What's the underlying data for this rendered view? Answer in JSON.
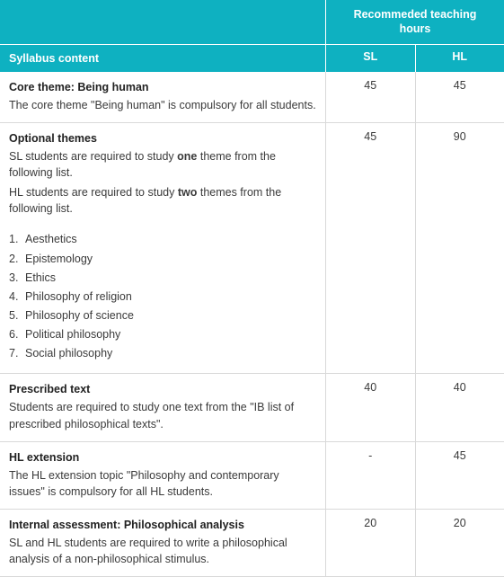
{
  "header": {
    "syllabus_label": "Syllabus content",
    "hours_label_line1": "Recommeded teaching",
    "hours_label_line2": "hours",
    "sl_label": "SL",
    "hl_label": "HL"
  },
  "colors": {
    "header_bg": "#0eb1c1",
    "header_text": "#ffffff",
    "border": "#d9d9d9",
    "body_text": "#3a3a3a"
  },
  "rows": [
    {
      "title": "Core theme: Being human",
      "desc": "The core theme \"Being human\" is compulsory for all students.",
      "sl": "45",
      "hl": "45"
    },
    {
      "title": "Optional themes",
      "desc_line1_pre": "SL students are required to study ",
      "desc_line1_bold": "one",
      "desc_line1_post": " theme from the following list.",
      "desc_line2_pre": "HL students are required to study ",
      "desc_line2_bold": "two",
      "desc_line2_post": " themes from the following list.",
      "sl": "45",
      "hl": "90",
      "list": [
        "Aesthetics",
        "Epistemology",
        "Ethics",
        "Philosophy of religion",
        "Philosophy of science",
        "Political philosophy",
        "Social philosophy"
      ]
    },
    {
      "title": "Prescribed text",
      "desc": "Students are required to study one text from the \"IB list of prescribed philosophical texts\".",
      "sl": "40",
      "hl": "40"
    },
    {
      "title": "HL extension",
      "desc": "The HL extension topic \"Philosophy and contemporary issues\" is compulsory for all HL students.",
      "sl": "-",
      "hl": "45"
    },
    {
      "title": "Internal assessment: Philosophical analysis",
      "desc": "SL and HL students are required to write a philosophical analysis of a non-philosophical stimulus.",
      "sl": "20",
      "hl": "20"
    }
  ]
}
